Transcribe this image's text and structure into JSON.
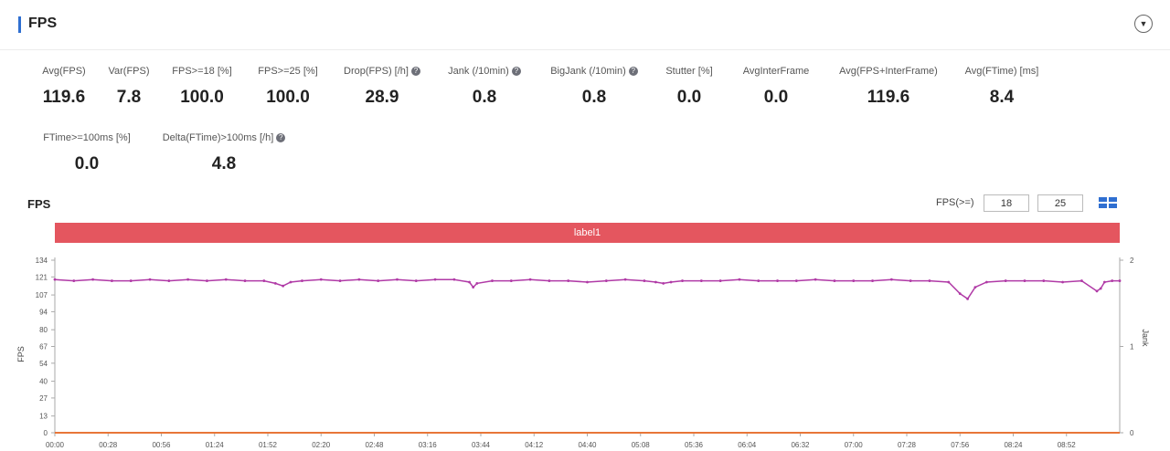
{
  "header": {
    "title": "FPS",
    "toggle_icon": "chevron-down-icon"
  },
  "metrics": [
    {
      "label": "Avg(FPS)",
      "value": "119.6",
      "help": false
    },
    {
      "label": "Var(FPS)",
      "value": "7.8",
      "help": false
    },
    {
      "label": "FPS>=18 [%]",
      "value": "100.0",
      "help": false
    },
    {
      "label": "FPS>=25 [%]",
      "value": "100.0",
      "help": false
    },
    {
      "label": "Drop(FPS) [/h]",
      "value": "28.9",
      "help": true
    },
    {
      "label": "Jank (/10min)",
      "value": "0.8",
      "help": true
    },
    {
      "label": "BigJank (/10min)",
      "value": "0.8",
      "help": true
    },
    {
      "label": "Stutter [%]",
      "value": "0.0",
      "help": false
    },
    {
      "label": "AvgInterFrame",
      "value": "0.0",
      "help": false
    },
    {
      "label": "Avg(FPS+InterFrame)",
      "value": "119.6",
      "help": false
    },
    {
      "label": "Avg(FTime) [ms]",
      "value": "8.4",
      "help": false
    },
    {
      "label": "FTime>=100ms [%]",
      "value": "0.0",
      "help": false
    },
    {
      "label": "Delta(FTime)>100ms [/h]",
      "value": "4.8",
      "help": true
    }
  ],
  "chart_header": {
    "title": "FPS",
    "threshold_label": "FPS(>=)",
    "threshold_low": "18",
    "threshold_high": "25",
    "layout_icon": "grid-layout-icon"
  },
  "label_band": "label1",
  "colors": {
    "fps_line": "#b03aa6",
    "jank_line": "#e87638",
    "label_band": "#e4565f",
    "accent": "#2f6fd1"
  },
  "chart_data": {
    "type": "line",
    "title": "FPS",
    "ylabel": "FPS",
    "y2label": "Jank",
    "ylim": [
      0,
      134
    ],
    "y2lim": [
      0,
      2
    ],
    "yticks": [
      "0",
      "13",
      "27",
      "40",
      "54",
      "67",
      "80",
      "94",
      "107",
      "121",
      "134"
    ],
    "y2ticks": [
      "0",
      "1",
      "2"
    ],
    "xticks": [
      "00:00",
      "00:28",
      "00:56",
      "01:24",
      "01:52",
      "02:20",
      "02:48",
      "03:16",
      "03:44",
      "04:12",
      "04:40",
      "05:08",
      "05:36",
      "06:04",
      "06:32",
      "07:00",
      "07:28",
      "07:56",
      "08:24",
      "08:52"
    ],
    "x_end_seconds": 560,
    "grid": false,
    "series": [
      {
        "color": "#b03aa6",
        "axis": "left",
        "x": [
          0,
          10,
          20,
          30,
          40,
          50,
          60,
          70,
          80,
          90,
          100,
          110,
          116,
          120,
          124,
          130,
          140,
          150,
          160,
          170,
          180,
          190,
          200,
          210,
          218,
          220,
          222,
          230,
          240,
          250,
          260,
          270,
          280,
          290,
          300,
          310,
          316,
          320,
          324,
          330,
          340,
          350,
          360,
          370,
          380,
          390,
          400,
          410,
          420,
          430,
          440,
          450,
          460,
          470,
          476,
          480,
          484,
          490,
          500,
          510,
          520,
          530,
          540,
          548,
          550,
          552,
          556,
          560
        ],
        "y": [
          119,
          118,
          119,
          118,
          118,
          119,
          118,
          119,
          118,
          119,
          118,
          118,
          116,
          114,
          117,
          118,
          119,
          118,
          119,
          118,
          119,
          118,
          119,
          119,
          117,
          113,
          116,
          118,
          118,
          119,
          118,
          118,
          117,
          118,
          119,
          118,
          117,
          116,
          117,
          118,
          118,
          118,
          119,
          118,
          118,
          118,
          119,
          118,
          118,
          118,
          119,
          118,
          118,
          117,
          108,
          104,
          113,
          117,
          118,
          118,
          118,
          117,
          118,
          110,
          112,
          117,
          118,
          118
        ]
      },
      {
        "color": "#e87638",
        "axis": "right",
        "x": [
          0,
          560
        ],
        "y": [
          0,
          0
        ]
      }
    ]
  }
}
